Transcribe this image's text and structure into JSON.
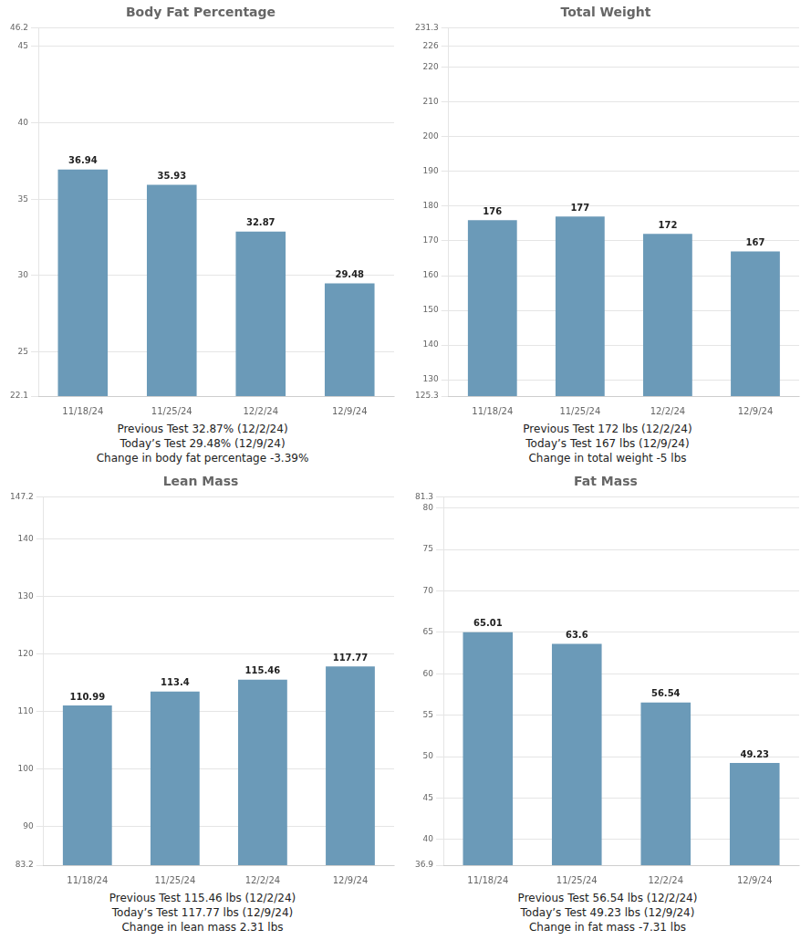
{
  "chart_data": [
    {
      "type": "bar",
      "title": "Body Fat Percentage",
      "categories": [
        "11/18/24",
        "11/25/24",
        "12/2/24",
        "12/9/24"
      ],
      "values": [
        36.94,
        35.93,
        32.87,
        29.48
      ],
      "color": "#6b9ab8",
      "ylim": [
        22.1,
        46.2
      ],
      "yticks": [
        22.1,
        25,
        30,
        35,
        40,
        45,
        46.2
      ],
      "grid": true,
      "data_labels": true,
      "annotations": [
        "Previous Test 32.87% (12/2/24)",
        "Today’s Test 29.48% (12/9/24)",
        "Change in body fat percentage -3.39%"
      ]
    },
    {
      "type": "bar",
      "title": "Total Weight",
      "categories": [
        "11/18/24",
        "11/25/24",
        "12/2/24",
        "12/9/24"
      ],
      "values": [
        176,
        177,
        172,
        167
      ],
      "color": "#6b9ab8",
      "ylim": [
        125.3,
        231.3
      ],
      "yticks": [
        125.3,
        130,
        140,
        150,
        160,
        170,
        180,
        190,
        200,
        210,
        220,
        226,
        231.3
      ],
      "grid": true,
      "data_labels": true,
      "annotations": [
        "Previous Test 172 lbs (12/2/24)",
        "Today’s Test 167 lbs (12/9/24)",
        "Change in total weight -5 lbs"
      ]
    },
    {
      "type": "bar",
      "title": "Lean Mass",
      "categories": [
        "11/18/24",
        "11/25/24",
        "12/2/24",
        "12/9/24"
      ],
      "values": [
        110.99,
        113.4,
        115.46,
        117.77
      ],
      "color": "#6b9ab8",
      "ylim": [
        83.2,
        147.2
      ],
      "yticks": [
        83.2,
        90,
        100,
        110,
        120,
        130,
        140,
        147.2
      ],
      "grid": true,
      "data_labels": true,
      "annotations": [
        "Previous Test 115.46 lbs (12/2/24)",
        "Today’s Test 117.77 lbs (12/9/24)",
        "Change in lean mass 2.31 lbs"
      ]
    },
    {
      "type": "bar",
      "title": "Fat Mass",
      "categories": [
        "11/18/24",
        "11/25/24",
        "12/2/24",
        "12/9/24"
      ],
      "values": [
        65.01,
        63.6,
        56.54,
        49.23
      ],
      "color": "#6b9ab8",
      "ylim": [
        36.9,
        81.3
      ],
      "yticks": [
        36.9,
        40,
        45,
        50,
        55,
        60,
        65,
        70,
        75,
        80,
        81.3
      ],
      "grid": true,
      "data_labels": true,
      "annotations": [
        "Previous Test 56.54 lbs (12/2/24)",
        "Today’s Test 49.23 lbs (12/9/24)",
        "Change in fat mass -7.31 lbs"
      ]
    }
  ]
}
